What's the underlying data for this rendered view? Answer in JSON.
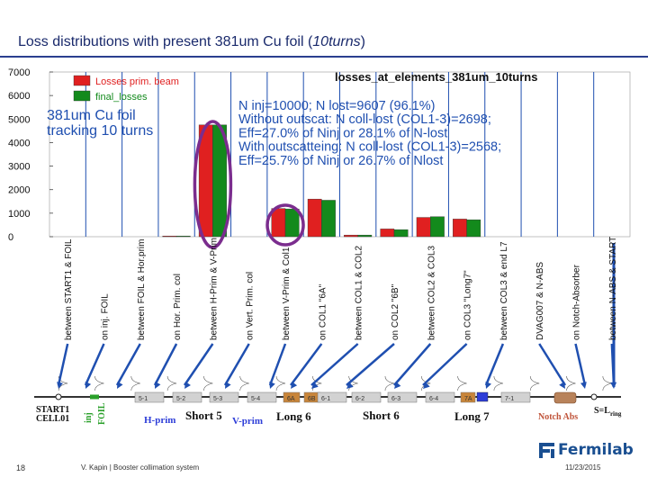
{
  "slide": {
    "title_main": "Loss distributions with present 381um Cu foil (",
    "title_italic": "10turns",
    "title_end": ")",
    "page_number": "18",
    "author_line": "V. Kapin | Booster collimation system",
    "date": "11/23/2015",
    "logo_text": "Fermilab",
    "colors": {
      "title": "#1a2a6c",
      "logo": "#1a4f91",
      "accent_blue": "#1f4fb0",
      "oval": "#7b2d8e"
    }
  },
  "chart_data": {
    "type": "bar",
    "title": "losses_at_elements_381um_10turns",
    "legend": [
      {
        "label": "Losses prim. beam",
        "color": "#e02020"
      },
      {
        "label": "final_losses",
        "color": "#138a1c"
      }
    ],
    "legend_position": "top-left",
    "annotation_left": [
      "381um Cu foil",
      "tracking 10 turns"
    ],
    "annotation_right": [
      "N inj=10000; N lost=9607 (96.1%)",
      "Without outscat: N coll-lost (COL1-3)=2698;",
      "Eff=27.0% of Ninj or 28.1% of N-lost",
      "With outscatteing: N coll-lost (COL1-3)=2568;",
      "Eff=25.7% of Ninj or 26.7% of Nlost"
    ],
    "ylim": [
      0,
      7000
    ],
    "yticks": [
      0,
      1000,
      2000,
      3000,
      4000,
      5000,
      6000,
      7000
    ],
    "categories": [
      "between START1 & FOIL",
      "on inj. FOIL",
      "between FOIL & Hor.prim",
      "on Hor. Prim. col",
      "between H-Prim & V-Prim",
      "on Vert. Prim. col",
      "between V-Prim & Col1",
      "on COL1 \"6A\"",
      "between COL1 & COL2",
      "on COL2 \"6B\"",
      "between COL2 & COL3",
      "on COL3 \"Long7\"",
      "between COL3 & end L7",
      "DVAG007 & N-ABS",
      "on Notch-Absorber",
      "between N-ABS & START"
    ],
    "series": [
      {
        "name": "Losses prim. beam",
        "color": "#e02020",
        "values": [
          0,
          0,
          0,
          30,
          4750,
          0,
          1200,
          1600,
          70,
          330,
          820,
          750,
          0,
          0,
          0,
          0
        ]
      },
      {
        "name": "final_losses",
        "color": "#138a1c",
        "values": [
          0,
          0,
          0,
          30,
          4750,
          0,
          1180,
          1550,
          70,
          300,
          850,
          720,
          0,
          0,
          0,
          0
        ]
      }
    ],
    "beamline": {
      "labels": [
        "START1",
        "CELL01",
        "inj",
        "FOIL",
        "H-prim",
        "Short 5",
        "V-prim",
        "Long 6",
        "Short 6",
        "Long 7",
        "Notch Abs",
        "S=L"
      ],
      "ring_subscript": "ring",
      "magnets": [
        "5-1",
        "5-2",
        "5-3",
        "5-4",
        "6A",
        "6B",
        "6-1",
        "6-2",
        "6-3",
        "6-4",
        "7A",
        "7-1"
      ]
    }
  }
}
